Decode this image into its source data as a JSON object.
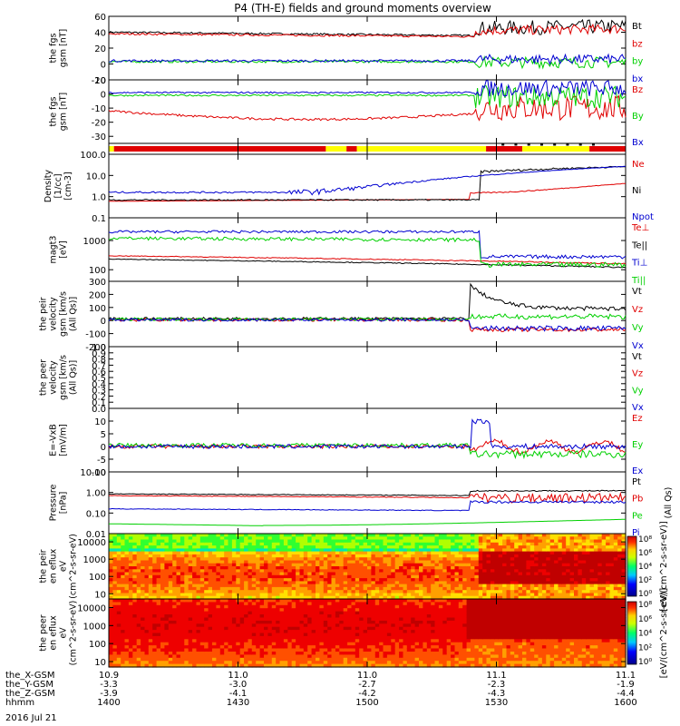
{
  "figure": {
    "title": "P4 (TH-E) fields and ground moments overview",
    "date_label": "2016 Jul 21"
  },
  "orbit": {
    "rows": [
      {
        "label": "the_X-GSM",
        "values": [
          "10.9",
          "11.0",
          "11.0",
          "11.1",
          "11.1"
        ]
      },
      {
        "label": "the_Y-GSM",
        "values": [
          "-3.3",
          "-3.0",
          "-2.7",
          "-2.3",
          "-1.9"
        ]
      },
      {
        "label": "the_Z-GSM",
        "values": [
          "-3.9",
          "-4.1",
          "-4.2",
          "-4.3",
          "-4.4"
        ]
      },
      {
        "label": "hhmm",
        "values": [
          "1400",
          "1430",
          "1500",
          "1530",
          "1600"
        ]
      }
    ]
  },
  "colors": {
    "black": "#000000",
    "red": "#e00000",
    "green": "#00d000",
    "blue": "#0000d0",
    "yellow": "#ffff00"
  },
  "chart_data": [
    {
      "type": "line",
      "ylabel": "the fgs gsm [nT]",
      "ylim": [
        -20,
        60
      ],
      "yticks": [
        "60",
        "40",
        "20",
        "0",
        "-20"
      ],
      "series": [
        {
          "name": "Bt",
          "color": "#000000"
        },
        {
          "name": "bz",
          "color": "#e00000"
        },
        {
          "name": "by",
          "color": "#00d000"
        },
        {
          "name": "bx",
          "color": "#0000d0"
        }
      ]
    },
    {
      "type": "line",
      "ylabel": "the fgs gsm [nT]",
      "ylim": [
        -35,
        10
      ],
      "yticks": [
        "10",
        "0",
        "-10",
        "-20",
        "-30"
      ],
      "series": [
        {
          "name": "Bz",
          "color": "#e00000"
        },
        {
          "name": "By",
          "color": "#00d000"
        },
        {
          "name": "Bx",
          "color": "#0000d0"
        }
      ]
    },
    {
      "type": "bar",
      "ylabel": "",
      "series": [
        {
          "name": "mode",
          "color": "#ffff00"
        }
      ]
    },
    {
      "type": "line",
      "ylabel": "Density [1/cc] [cm-3]",
      "log": true,
      "ylim": [
        0.1,
        100
      ],
      "yticks": [
        "100.0",
        "10.0",
        "1.0",
        "0.1"
      ],
      "series": [
        {
          "name": "Ne",
          "color": "#e00000"
        },
        {
          "name": "Ni",
          "color": "#000000"
        },
        {
          "name": "Npot",
          "color": "#0000d0"
        }
      ]
    },
    {
      "type": "line",
      "ylabel": "magt3 [eV]",
      "log": true,
      "ylim": [
        40,
        6000
      ],
      "yticks": [
        "1000",
        "100"
      ],
      "series": [
        {
          "name": "Te⊥",
          "color": "#e00000"
        },
        {
          "name": "Te||",
          "color": "#000000"
        },
        {
          "name": "Ti⊥",
          "color": "#0000d0"
        },
        {
          "name": "Ti||",
          "color": "#00d000"
        }
      ]
    },
    {
      "type": "line",
      "ylabel": "the peir velocity gsm [km/s (All Qs)]",
      "ylim": [
        -200,
        300
      ],
      "yticks": [
        "300",
        "200",
        "100",
        "0",
        "-100",
        "-200"
      ],
      "series": [
        {
          "name": "Vt",
          "color": "#000000"
        },
        {
          "name": "Vz",
          "color": "#e00000"
        },
        {
          "name": "Vy",
          "color": "#00d000"
        },
        {
          "name": "Vx",
          "color": "#0000d0"
        }
      ]
    },
    {
      "type": "line",
      "ylabel": "the peer velocity gsm [km/s (All Qs)]",
      "ylim": [
        0,
        1
      ],
      "yticks": [
        "1.0",
        "0.9",
        "0.8",
        "0.7",
        "0.6",
        "0.5",
        "0.4",
        "0.3",
        "0.2",
        "0.1",
        "0.0"
      ],
      "series": [
        {
          "name": "Vt",
          "color": "#000000"
        },
        {
          "name": "Vz",
          "color": "#e00000"
        },
        {
          "name": "Vy",
          "color": "#00d000"
        },
        {
          "name": "Vx",
          "color": "#0000d0"
        }
      ]
    },
    {
      "type": "line",
      "ylabel": "E=-VxB [mV/m]",
      "ylim": [
        -10,
        15
      ],
      "yticks": [
        "10",
        "5",
        "0",
        "-5",
        "-10"
      ],
      "series": [
        {
          "name": "Ez",
          "color": "#e00000"
        },
        {
          "name": "Ey",
          "color": "#00d000"
        },
        {
          "name": "Ex",
          "color": "#0000d0"
        }
      ]
    },
    {
      "type": "line",
      "ylabel": "Pressure [nPa]",
      "log": true,
      "ylim": [
        0.01,
        10
      ],
      "yticks": [
        "10.00",
        "1.00",
        "0.10",
        "0.01"
      ],
      "series": [
        {
          "name": "Pt",
          "color": "#000000"
        },
        {
          "name": "Pb",
          "color": "#e00000"
        },
        {
          "name": "Pe",
          "color": "#00d000"
        },
        {
          "name": "Pi",
          "color": "#0000d0"
        }
      ],
      "ylabel_right": "(All Qs)"
    },
    {
      "type": "heatmap",
      "ylabel": "the peir en eflux eV (cm^2-s-sr-eV)",
      "log": true,
      "ylim": [
        5,
        30000
      ],
      "yticks": [
        "10000",
        "1000",
        "100",
        "10"
      ],
      "zticks": [
        "10⁸",
        "10⁶",
        "10⁴",
        "10²",
        "10⁰"
      ],
      "colorbar_label": "[eV/(cm^2-s-sr-eV)]"
    },
    {
      "type": "heatmap",
      "ylabel": "the peer en eflux eV (cm^2-s-sr-eV)",
      "log": true,
      "ylim": [
        5,
        30000
      ],
      "yticks": [
        "10000",
        "1000",
        "100",
        "10"
      ],
      "zticks": [
        "10⁸",
        "10⁶",
        "10⁴",
        "10²",
        "10⁰"
      ],
      "colorbar_label": "[eV/(cm^2-s-sr-eV)]"
    }
  ]
}
